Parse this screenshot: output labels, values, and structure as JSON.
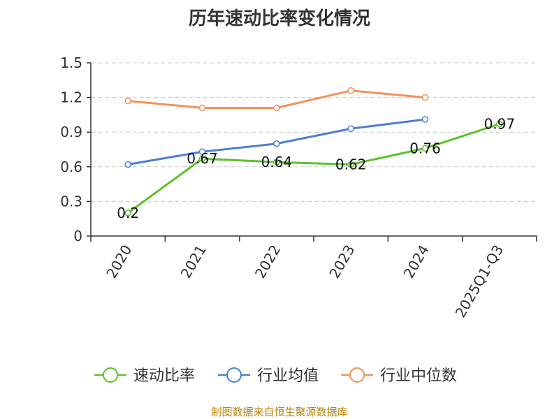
{
  "chart_data": {
    "type": "line",
    "title": "历年速动比率变化情况",
    "categories": [
      "2020",
      "2021",
      "2022",
      "2023",
      "2024",
      "2025Q1-Q3"
    ],
    "ylim": [
      0,
      1.5
    ],
    "yticks": [
      "0",
      "0.3",
      "0.6",
      "0.9",
      "1.2",
      "1.5"
    ],
    "grid": true,
    "legend_position": "bottom",
    "series": [
      {
        "name": "速动比率",
        "color": "#5cc02a",
        "values": [
          0.2,
          0.67,
          0.64,
          0.62,
          0.76,
          0.97
        ],
        "labels": [
          "0.2",
          "0.67",
          "0.64",
          "0.62",
          "0.76",
          "0.97"
        ],
        "show_labels": true
      },
      {
        "name": "行业均值",
        "color": "#4a7fd6",
        "values": [
          0.62,
          0.73,
          0.8,
          0.93,
          1.01,
          null
        ],
        "show_labels": false
      },
      {
        "name": "行业中位数",
        "color": "#f5905a",
        "values": [
          1.17,
          1.11,
          1.11,
          1.26,
          1.2,
          null
        ],
        "show_labels": false
      }
    ]
  },
  "source": "制图数据来自恒生聚源数据库"
}
